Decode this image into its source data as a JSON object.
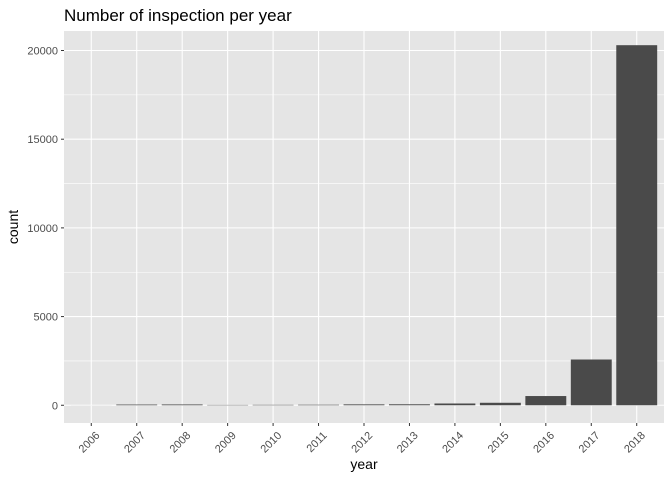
{
  "chart_data": {
    "type": "bar",
    "title": "Number of inspection per year",
    "xlabel": "year",
    "ylabel": "count",
    "categories": [
      "2006",
      "2007",
      "2008",
      "2009",
      "2010",
      "2011",
      "2012",
      "2013",
      "2014",
      "2015",
      "2016",
      "2017",
      "2018"
    ],
    "values": [
      2,
      40,
      45,
      20,
      25,
      30,
      50,
      55,
      100,
      140,
      520,
      2580,
      20300
    ],
    "ylim": [
      -1000,
      21100
    ],
    "yticks": [
      0,
      5000,
      10000,
      15000,
      20000
    ],
    "grid": true,
    "legend": "none",
    "colors": {
      "panel_background": "#e5e5e5",
      "grid_major": "#ffffff",
      "bar_fill": "#4a4a4a",
      "tick_text": "#4d4d4d"
    }
  }
}
